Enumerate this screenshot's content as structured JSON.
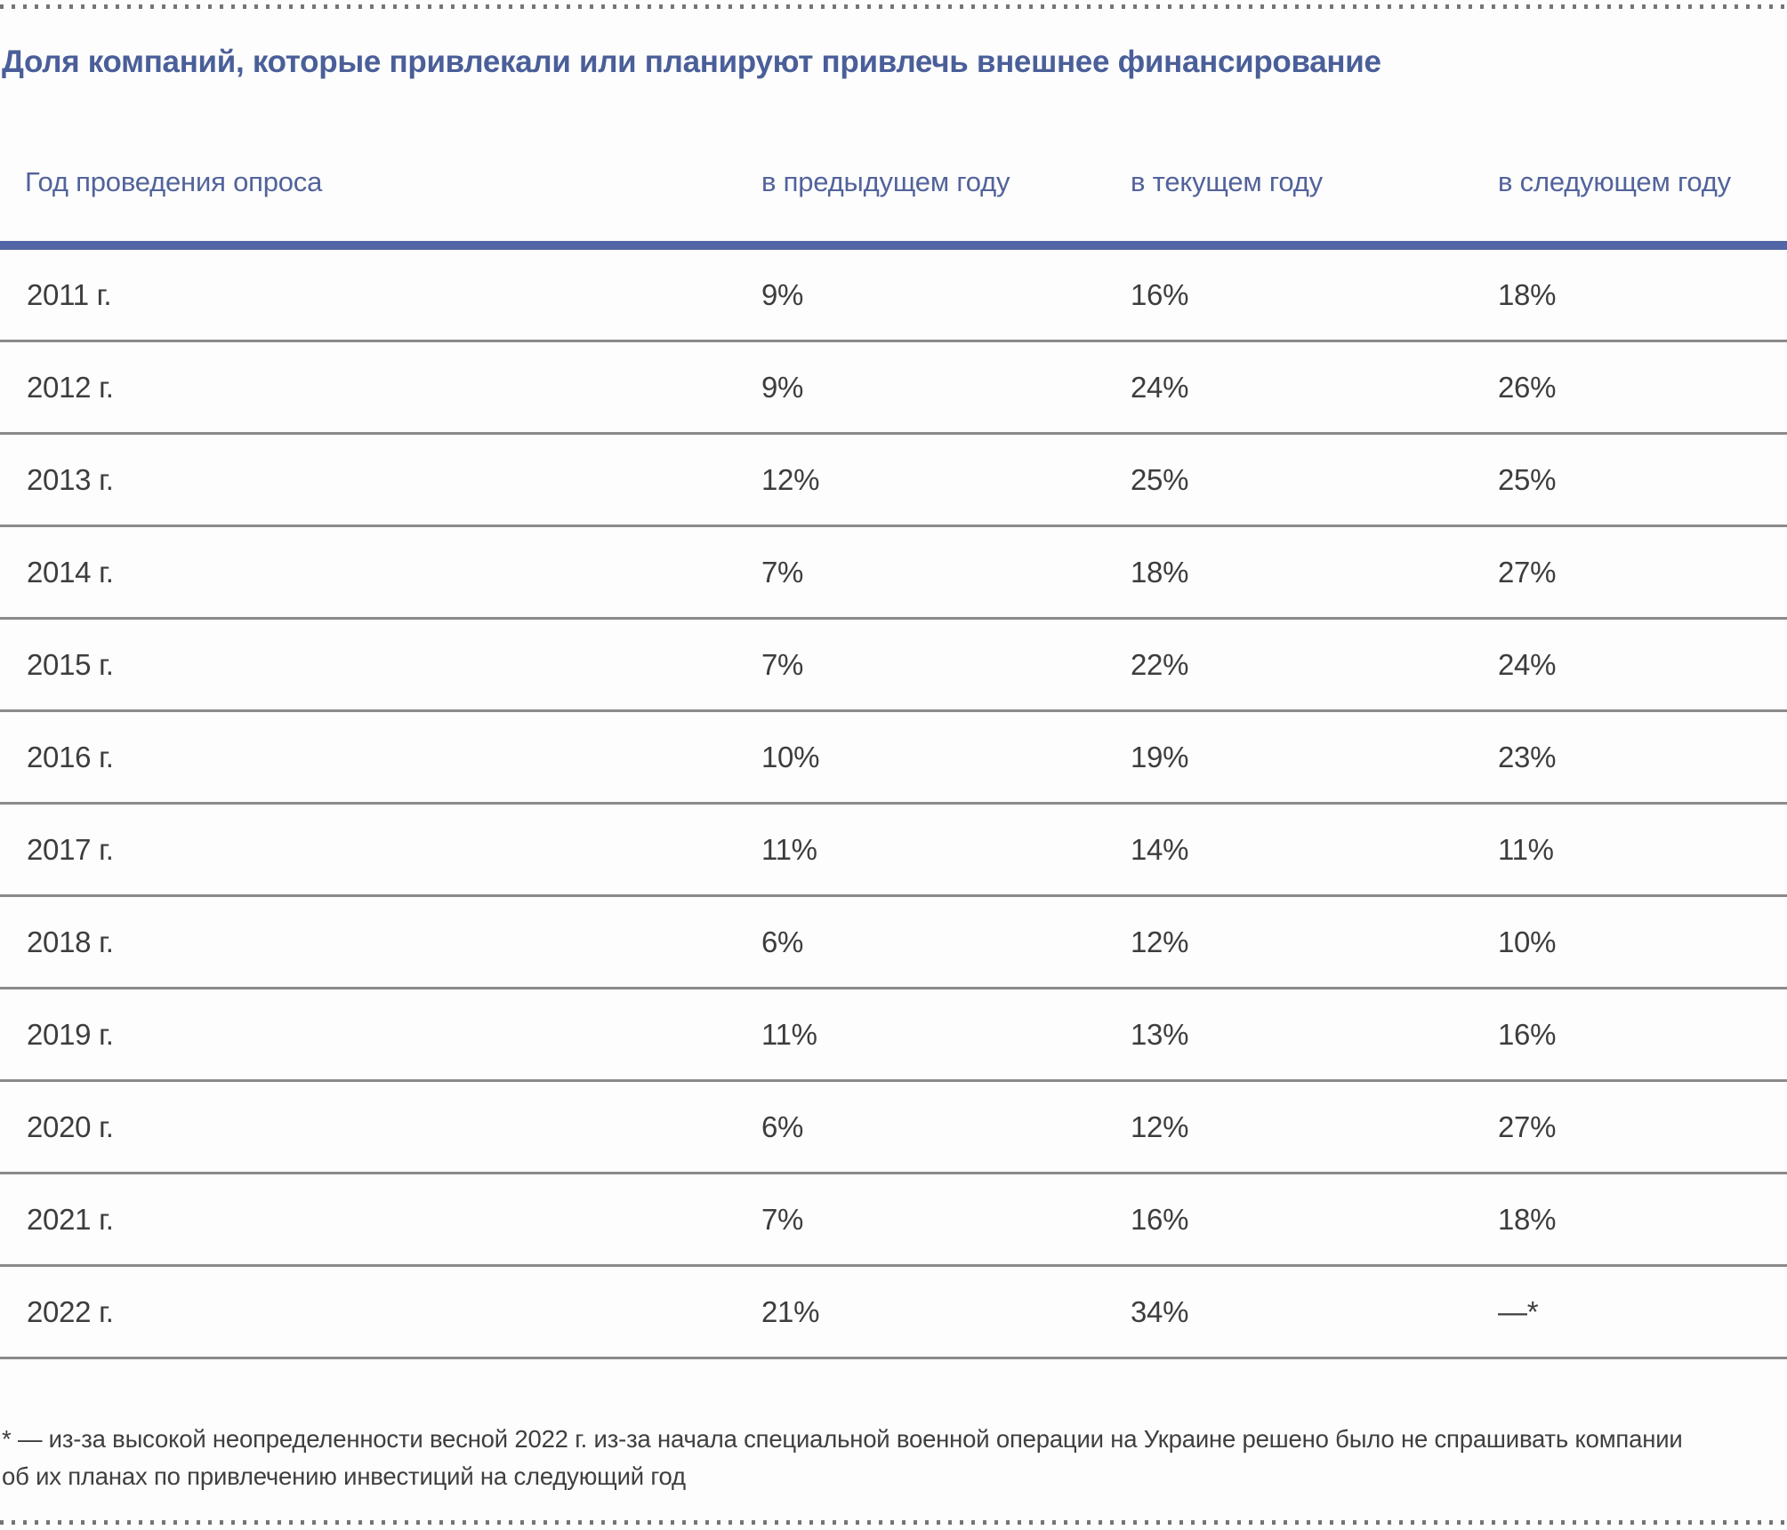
{
  "page": {
    "title": "Доля компаний, которые привлекали или планируют привлечь внешнее финансирование"
  },
  "colors": {
    "accent_blue_text": "#4a5f99",
    "header_blue_text": "#52639b",
    "header_rule_blue": "#5265a6",
    "row_separator_gray": "#8a8a8a",
    "body_text": "#3d3d3d",
    "dotted_rule_gray": "#757575",
    "background": "#fdfdfd"
  },
  "chart_data": {
    "type": "table",
    "title": "Доля компаний, которые привлекали или планируют привлечь внешнее финансирование",
    "columns": [
      "Год проведения опроса",
      "в предыдущем году",
      "в текущем году",
      "в следующем году"
    ],
    "rows": [
      {
        "year": "2011 г.",
        "prev": "9%",
        "curr": "16%",
        "next": "18%"
      },
      {
        "year": "2012 г.",
        "prev": "9%",
        "curr": "24%",
        "next": "26%"
      },
      {
        "year": "2013 г.",
        "prev": "12%",
        "curr": "25%",
        "next": "25%"
      },
      {
        "year": "2014 г.",
        "prev": "7%",
        "curr": "18%",
        "next": "27%"
      },
      {
        "year": "2015 г.",
        "prev": "7%",
        "curr": "22%",
        "next": "24%"
      },
      {
        "year": "2016 г.",
        "prev": "10%",
        "curr": "19%",
        "next": "23%"
      },
      {
        "year": "2017 г.",
        "prev": "11%",
        "curr": "14%",
        "next": "11%"
      },
      {
        "year": "2018 г.",
        "prev": "6%",
        "curr": "12%",
        "next": "10%"
      },
      {
        "year": "2019 г.",
        "prev": "11%",
        "curr": "13%",
        "next": "16%"
      },
      {
        "year": "2020 г.",
        "prev": "6%",
        "curr": "12%",
        "next": "27%"
      },
      {
        "year": "2021 г.",
        "prev": "7%",
        "curr": "16%",
        "next": "18%"
      },
      {
        "year": "2022 г.",
        "prev": "21%",
        "curr": "34%",
        "next": "—*"
      }
    ],
    "footnote_lines": [
      "* — из-за высокой неопределенности весной 2022 г. из-за начала специальной военной операции на Украине решено было не спрашивать компании",
      "об их планах по привлечению инвестиций на следующий год"
    ]
  }
}
